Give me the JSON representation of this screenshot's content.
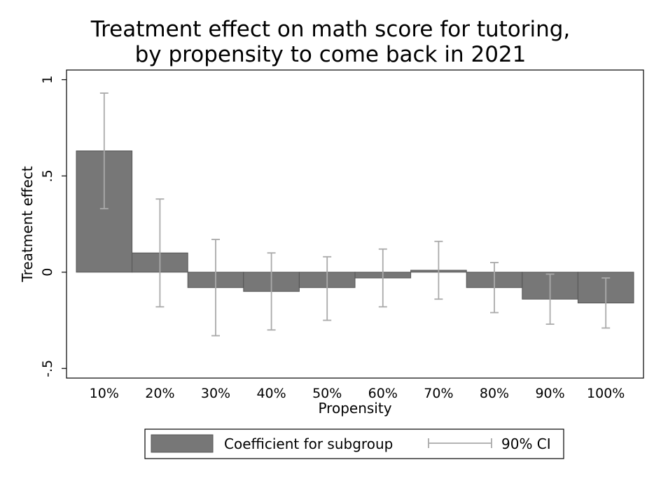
{
  "chart_data": {
    "type": "bar",
    "title": [
      "Treatment effect on math score for tutoring,",
      "by propensity to come back in 2021"
    ],
    "xlabel": "Propensity",
    "ylabel": "Treatment effect",
    "categories": [
      "10%",
      "20%",
      "30%",
      "40%",
      "50%",
      "60%",
      "70%",
      "80%",
      "90%",
      "100%"
    ],
    "series": [
      {
        "name": "Coefficient for subgroup",
        "values": [
          0.63,
          0.1,
          -0.08,
          -0.1,
          -0.08,
          -0.03,
          0.01,
          -0.08,
          -0.14,
          -0.16
        ]
      }
    ],
    "ci": {
      "name": "90% CI",
      "lower": [
        0.33,
        -0.18,
        -0.33,
        -0.3,
        -0.25,
        -0.18,
        -0.14,
        -0.21,
        -0.27,
        -0.29
      ],
      "upper": [
        0.93,
        0.38,
        0.17,
        0.1,
        0.08,
        0.12,
        0.16,
        0.05,
        -0.01,
        -0.03
      ]
    },
    "ylim": [
      -0.55,
      1.05
    ],
    "yticks": [
      1,
      0.5,
      0,
      -0.5
    ],
    "ytick_labels": [
      "1",
      ".5",
      "0",
      "-.5"
    ],
    "legend_position": "bottom",
    "grid": false,
    "colors": {
      "bar": "#777777",
      "bar_edge": "#555555",
      "ci": "#aaaaaa"
    }
  }
}
